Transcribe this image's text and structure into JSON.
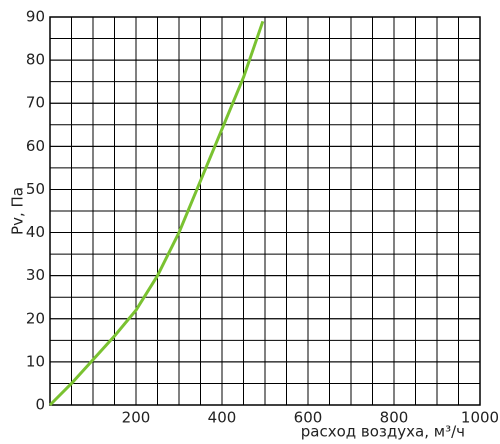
{
  "chart_data": {
    "type": "line",
    "x": [
      0,
      50,
      100,
      150,
      200,
      250,
      300,
      350,
      400,
      450,
      495
    ],
    "values": [
      0,
      5,
      10.5,
      16,
      22,
      30,
      40,
      52,
      64,
      76,
      89
    ],
    "color": "#7ac231",
    "xlabel": "расход воздуха, м³/ч",
    "ylabel": "Pv, Па",
    "xlim": [
      0,
      1000
    ],
    "ylim": [
      0,
      90
    ],
    "xticks": [
      200,
      400,
      600,
      800,
      1000
    ],
    "yticks": [
      0,
      10,
      20,
      30,
      40,
      50,
      60,
      70,
      80,
      90
    ],
    "xgrid": [
      50,
      100,
      150,
      200,
      250,
      300,
      350,
      400,
      450,
      500,
      550,
      600,
      650,
      700,
      750,
      800,
      850,
      900,
      950
    ],
    "ygrid": [
      5,
      10,
      15,
      20,
      25,
      30,
      35,
      40,
      45,
      50,
      55,
      60,
      65,
      70,
      75,
      80,
      85
    ],
    "grid": true
  }
}
